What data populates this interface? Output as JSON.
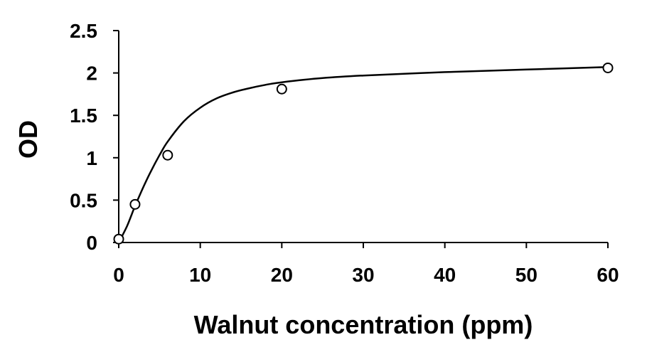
{
  "chart_data": {
    "type": "scatter",
    "title": "",
    "xlabel": "Walnut concentration (ppm)",
    "ylabel": "OD",
    "xlim": [
      0,
      60
    ],
    "ylim": [
      0,
      2.5
    ],
    "x_ticks": [
      0,
      10,
      20,
      30,
      40,
      50,
      60
    ],
    "y_ticks": [
      0,
      0.5,
      1,
      1.5,
      2,
      2.5
    ],
    "x_tick_labels": [
      "0",
      "10",
      "20",
      "30",
      "40",
      "50",
      "60"
    ],
    "y_tick_labels": [
      "0",
      "0.5",
      "1",
      "1.5",
      "2",
      "2.5"
    ],
    "grid": false,
    "legend": "none",
    "series": [
      {
        "kind": "points",
        "marker": "open-circle",
        "color": "#000000",
        "x": [
          0,
          2,
          6,
          20,
          60
        ],
        "y": [
          0.04,
          0.45,
          1.03,
          1.81,
          2.06
        ]
      },
      {
        "kind": "fitted-curve",
        "color": "#000000",
        "x": [
          0,
          1,
          2,
          3,
          4,
          5,
          6,
          8,
          10,
          12,
          14,
          16,
          18,
          20,
          25,
          30,
          40,
          50,
          60
        ],
        "y": [
          0.0,
          0.19,
          0.43,
          0.65,
          0.85,
          1.03,
          1.19,
          1.43,
          1.59,
          1.7,
          1.77,
          1.82,
          1.86,
          1.89,
          1.94,
          1.97,
          2.01,
          2.04,
          2.07
        ]
      }
    ]
  }
}
